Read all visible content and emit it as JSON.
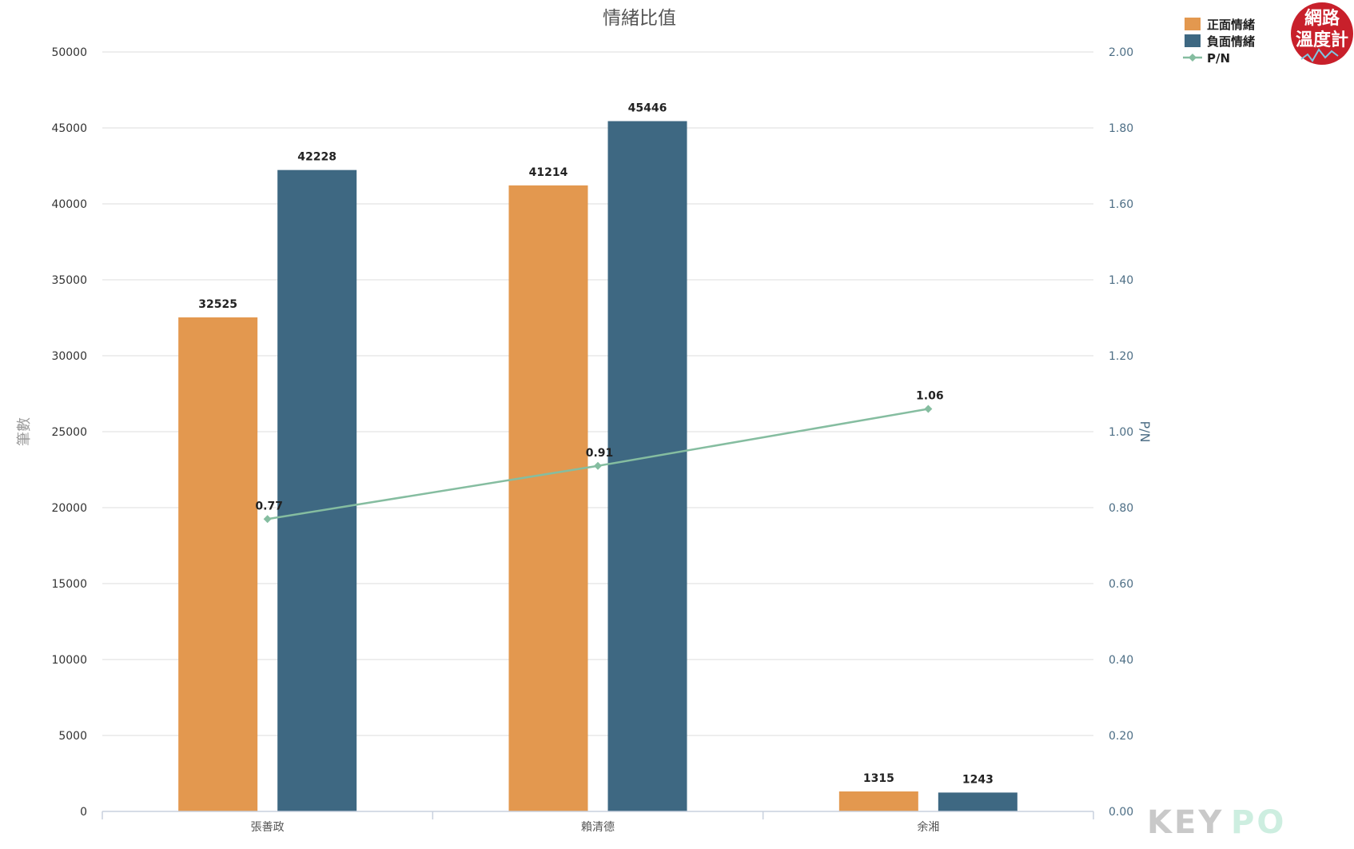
{
  "chart_data": {
    "type": "bar",
    "title": "情緒比值",
    "categories": [
      "張善政",
      "賴清德",
      "余湘"
    ],
    "series": [
      {
        "name": "正面情緒",
        "type": "bar",
        "axis": "left",
        "color": "#e3984f",
        "values": [
          32525,
          41214,
          1315
        ]
      },
      {
        "name": "負面情緒",
        "type": "bar",
        "axis": "left",
        "color": "#3e6882",
        "values": [
          42228,
          45446,
          1243
        ]
      },
      {
        "name": "P/N",
        "type": "line",
        "axis": "right",
        "color": "#85bda0",
        "values": [
          0.77,
          0.91,
          1.06
        ]
      }
    ],
    "ylabel": "筆數",
    "ylim": [
      0,
      50000
    ],
    "yticks": [
      "0",
      "5000",
      "10000",
      "15000",
      "20000",
      "25000",
      "30000",
      "35000",
      "40000",
      "45000",
      "50000"
    ],
    "y2label": "P/N",
    "y2lim": [
      0,
      2.0
    ],
    "y2ticks": [
      "0.00",
      "0.20",
      "0.40",
      "0.60",
      "0.80",
      "1.00",
      "1.20",
      "1.40",
      "1.60",
      "1.80",
      "2.00"
    ],
    "grid": true,
    "legend": "top-right"
  },
  "badge": {
    "line1": "網路",
    "line2": "溫度計",
    "color": "#c8202b"
  },
  "brand": {
    "text_dark": "KEY",
    "text_light": "PO"
  }
}
